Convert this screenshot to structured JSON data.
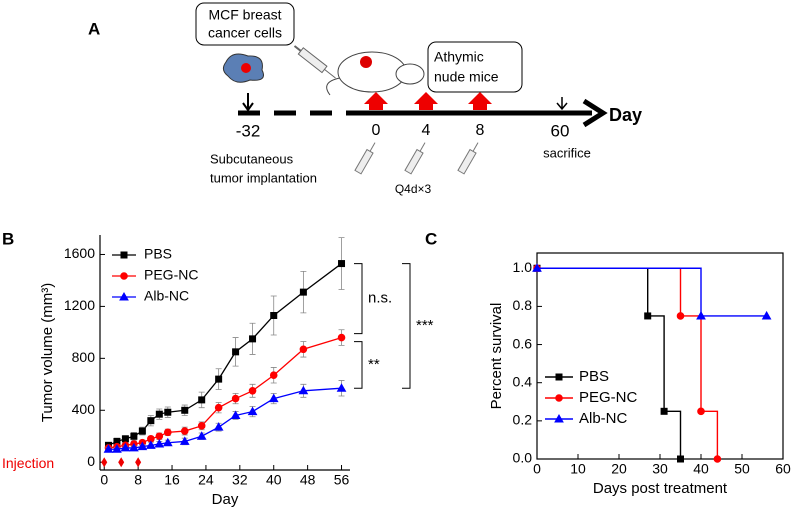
{
  "diagram": {
    "label": "A",
    "cells": [
      "MCF breast",
      "cancer cells"
    ],
    "mice": [
      "Athymic",
      "nude mice"
    ],
    "timeline": [
      "-32",
      "0",
      "4",
      "8",
      "60"
    ],
    "axis": "Day",
    "implantation": [
      "Subcutaneous",
      "tumor implantation"
    ],
    "schedule": "Q4d×3",
    "end": "sacrifice"
  },
  "chart_data": [
    {
      "type": "line",
      "panel": "B",
      "xlabel": "Day",
      "ylabel": "Tumor volume (mm³)",
      "x": [
        1,
        3,
        5,
        7,
        9,
        11,
        13,
        15,
        19,
        23,
        27,
        31,
        35,
        40,
        47,
        56
      ],
      "series": [
        {
          "name": "PBS",
          "color": "#000000",
          "marker": "square",
          "values": [
            130,
            160,
            180,
            200,
            240,
            320,
            370,
            385,
            400,
            480,
            640,
            850,
            950,
            1130,
            1310,
            1530
          ],
          "errors": [
            20,
            25,
            25,
            30,
            30,
            40,
            40,
            40,
            40,
            60,
            80,
            110,
            120,
            150,
            160,
            200
          ]
        },
        {
          "name": "PEG-NC",
          "color": "#ff0000",
          "marker": "circle",
          "values": [
            110,
            120,
            130,
            140,
            150,
            180,
            200,
            230,
            240,
            280,
            420,
            490,
            550,
            670,
            870,
            960
          ],
          "errors": [
            15,
            15,
            15,
            20,
            20,
            20,
            25,
            25,
            30,
            30,
            40,
            40,
            50,
            60,
            60,
            60
          ]
        },
        {
          "name": "Alb-NC",
          "color": "#0000ff",
          "marker": "triangle",
          "values": [
            100,
            100,
            110,
            110,
            120,
            130,
            140,
            150,
            160,
            200,
            270,
            360,
            390,
            490,
            550,
            570
          ],
          "errors": [
            15,
            15,
            15,
            15,
            15,
            20,
            20,
            20,
            25,
            25,
            30,
            30,
            40,
            40,
            50,
            60
          ]
        }
      ],
      "xlim": [
        -1,
        58
      ],
      "xticks": [
        0,
        8,
        16,
        24,
        32,
        40,
        48,
        56
      ],
      "ylim": [
        -60,
        1750
      ],
      "yticks": [
        0,
        400,
        800,
        1200,
        1600
      ],
      "legend": "upper left",
      "annotations": [
        "n.s.",
        "**",
        "***"
      ],
      "injection_label": "Injection",
      "injection_days": [
        0,
        4,
        8
      ]
    },
    {
      "type": "step",
      "panel": "C",
      "xlabel": "Days post treatment",
      "ylabel": "Percent survival",
      "frame": true,
      "series": [
        {
          "name": "PBS",
          "color": "#000000",
          "marker": "square",
          "x": [
            0,
            27,
            31,
            35
          ],
          "values": [
            1,
            0.75,
            0.25,
            0
          ]
        },
        {
          "name": "PEG-NC",
          "color": "#ff0000",
          "marker": "circle",
          "x": [
            0,
            35,
            40,
            44
          ],
          "values": [
            1,
            0.75,
            0.25,
            0
          ]
        },
        {
          "name": "Alb-NC",
          "color": "#0000ff",
          "marker": "triangle",
          "x": [
            0,
            40,
            56
          ],
          "values": [
            1,
            0.75,
            0.75
          ]
        }
      ],
      "xlim": [
        0,
        60
      ],
      "xticks": [
        0,
        10,
        20,
        30,
        40,
        50,
        60
      ],
      "ylim": [
        0,
        1.08
      ],
      "yticks": [
        {
          "value": 0,
          "label": "0.0"
        },
        0.2,
        0.4,
        0.6,
        0.8,
        {
          "value": 1,
          "label": "1.0"
        }
      ],
      "legend": "lower left"
    }
  ]
}
